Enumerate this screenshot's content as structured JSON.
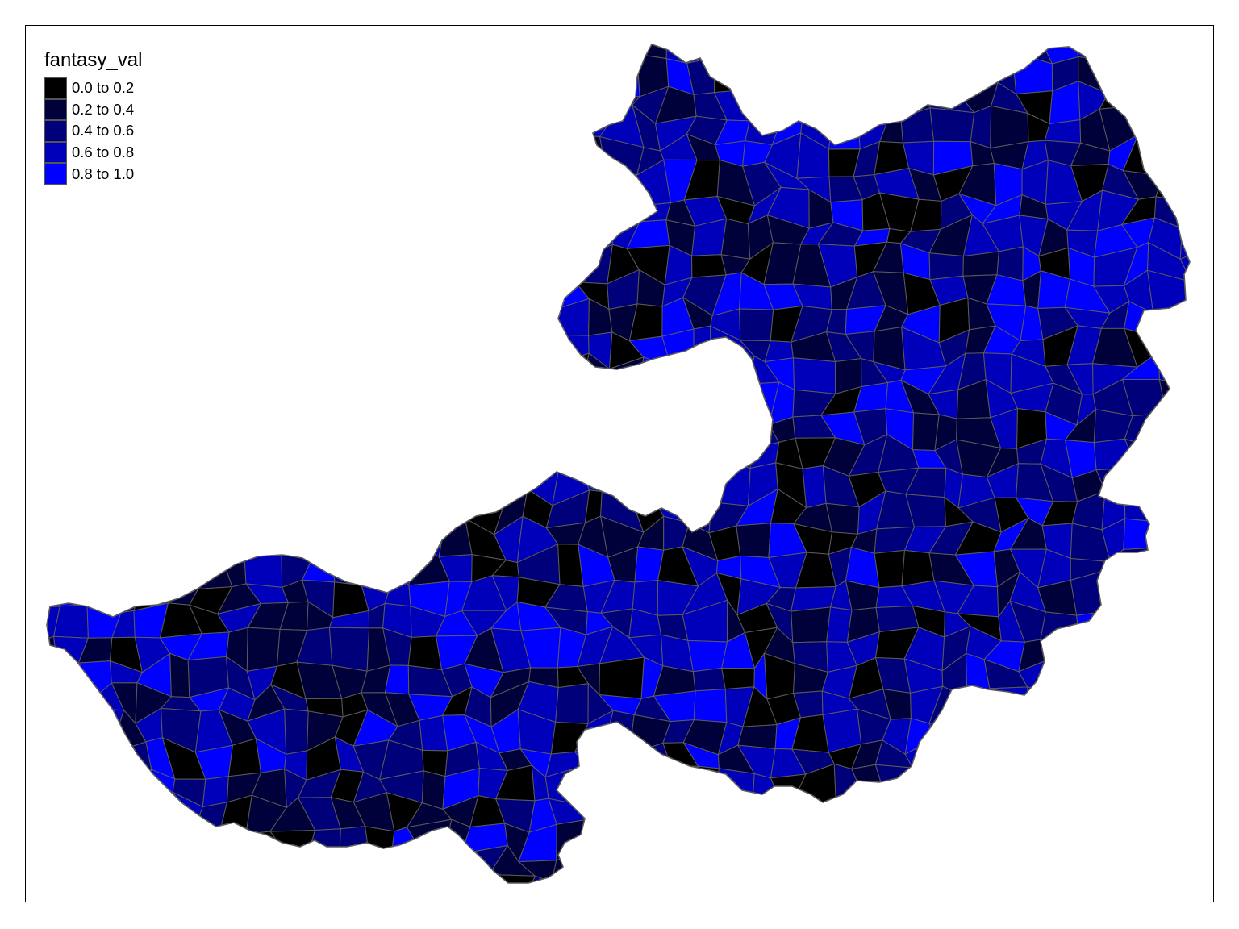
{
  "map": {
    "variable": "fantasy_val",
    "legend": {
      "title": "fantasy_val",
      "classes": [
        {
          "label": "0.0 to 0.2",
          "color": "#000000"
        },
        {
          "label": "0.2 to 0.4",
          "color": "#00003a"
        },
        {
          "label": "0.4 to 0.6",
          "color": "#00007a"
        },
        {
          "label": "0.6 to 0.8",
          "color": "#0000bb"
        },
        {
          "label": "0.8 to 1.0",
          "color": "#0000ff"
        }
      ]
    },
    "border_color": "#5a5a5a",
    "region": "choropleth of administrative areas"
  }
}
